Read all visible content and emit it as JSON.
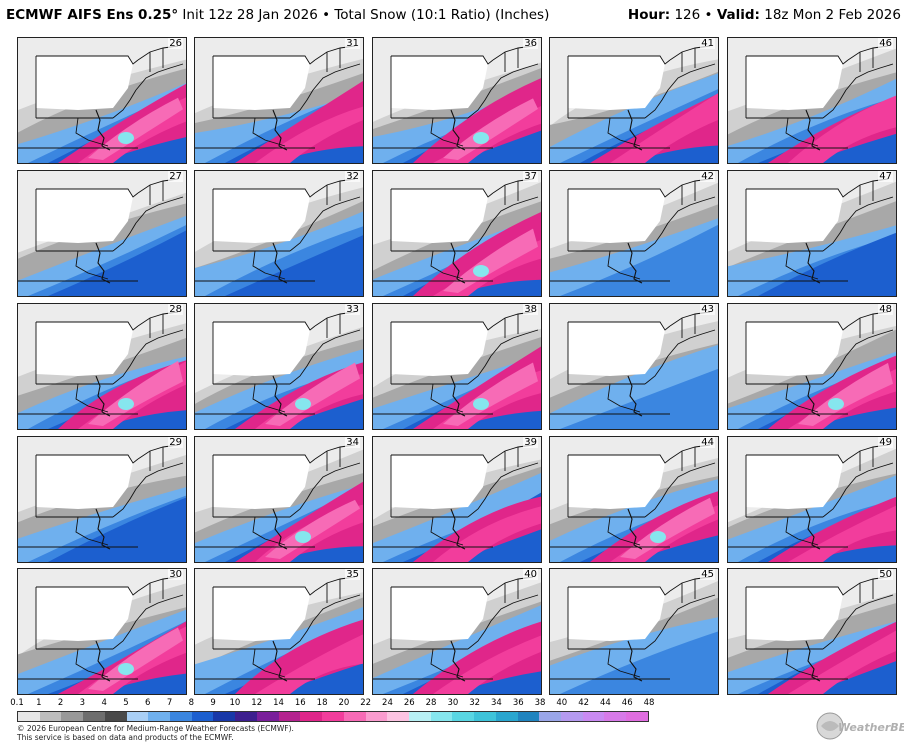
{
  "header": {
    "model": "ECMWF AIFS Ens 0.25",
    "degree": "°",
    "init": "Init 12z 28 Jan 2026",
    "bullet": "•",
    "product": "Total Snow (10:1 Ratio) (Inches)",
    "hour_label": "Hour:",
    "hour_value": "126",
    "valid_label": "Valid:",
    "valid_value": "18z Mon 2 Feb 2026"
  },
  "panels": [
    {
      "member": "26",
      "level": 4
    },
    {
      "member": "31",
      "level": 3
    },
    {
      "member": "36",
      "level": 4
    },
    {
      "member": "41",
      "level": 3
    },
    {
      "member": "46",
      "level": 3
    },
    {
      "member": "27",
      "level": 2
    },
    {
      "member": "32",
      "level": 2
    },
    {
      "member": "37",
      "level": 4
    },
    {
      "member": "42",
      "level": 1
    },
    {
      "member": "47",
      "level": 2
    },
    {
      "member": "28",
      "level": 4
    },
    {
      "member": "33",
      "level": 4
    },
    {
      "member": "38",
      "level": 4
    },
    {
      "member": "43",
      "level": 1
    },
    {
      "member": "48",
      "level": 4
    },
    {
      "member": "29",
      "level": 2
    },
    {
      "member": "34",
      "level": 4
    },
    {
      "member": "39",
      "level": 3
    },
    {
      "member": "44",
      "level": 4
    },
    {
      "member": "49",
      "level": 3
    },
    {
      "member": "30",
      "level": 4
    },
    {
      "member": "35",
      "level": 3
    },
    {
      "member": "40",
      "level": 3
    },
    {
      "member": "45",
      "level": 1
    },
    {
      "member": "50",
      "level": 3
    }
  ],
  "colorbar": {
    "tick_labels": [
      "0.1",
      "1",
      "2",
      "3",
      "4",
      "5",
      "6",
      "7",
      "8",
      "9",
      "10",
      "12",
      "14",
      "16",
      "18",
      "20",
      "22",
      "24",
      "26",
      "28",
      "30",
      "32",
      "34",
      "36",
      "38",
      "40",
      "42",
      "44",
      "46",
      "48"
    ],
    "colors": [
      "#e6e6e6",
      "#bdbdbd",
      "#999999",
      "#6e6e6e",
      "#4a4a4a",
      "#a9cff5",
      "#6fb0ee",
      "#3b86e0",
      "#1c5fcf",
      "#1838a8",
      "#3d1f8f",
      "#7a1f9b",
      "#b4238f",
      "#e0268a",
      "#f23d9c",
      "#f76bb6",
      "#fa9ccf",
      "#fcc4e2",
      "#b8f0f4",
      "#86e6ee",
      "#59d6e3",
      "#3ec3d9",
      "#2aa6cf",
      "#2084bf",
      "#9aa6e8",
      "#b59af0",
      "#c98af2",
      "#d77ae8",
      "#e06ee0"
    ]
  },
  "footer": {
    "line1": "© 2026 European Centre for Medium-Range Weather Forecasts (ECMWF).",
    "line2": "This service is based on data and products of the ECMWF."
  },
  "logo": {
    "text": "WeatherBELL"
  }
}
